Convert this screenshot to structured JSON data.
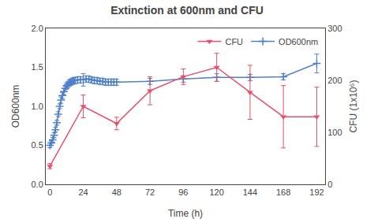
{
  "chart_data": {
    "type": "line",
    "title": "Extinction at 600nm and CFU",
    "xlabel": "Time (h)",
    "ylabel": "OD600nm",
    "y2label": "CFU (1x10⁶)",
    "xlim": [
      -3,
      198
    ],
    "xticks": [
      0,
      24,
      48,
      72,
      96,
      120,
      144,
      168,
      192
    ],
    "ylim": [
      0.0,
      2.0
    ],
    "yticks": [
      {
        "value": 0,
        "label": "0.0"
      },
      0.5,
      {
        "value": 1,
        "label": "1.0"
      },
      1.5,
      {
        "value": 2,
        "label": "2.0"
      }
    ],
    "y2lim": [
      0,
      300
    ],
    "y2ticks": [
      0,
      100,
      200,
      300
    ],
    "grid": false,
    "legend": "upper right",
    "background_color": "#FFFFFF",
    "series": [
      {
        "name": "CFU",
        "axis": "y2",
        "color": "#E8506A",
        "marker": "triangle-down",
        "x": [
          0,
          24,
          48,
          72,
          96,
          120,
          144,
          168,
          192
        ],
        "values": [
          35,
          150,
          117,
          180,
          207,
          225,
          177,
          130,
          130
        ],
        "errors": [
          5,
          22,
          12,
          27,
          15,
          27,
          52,
          60,
          57
        ]
      },
      {
        "name": "OD600nm",
        "axis": "y",
        "color": "#5080C8",
        "marker": "cross-thin",
        "x": [
          0,
          1,
          2,
          3,
          4,
          5,
          6,
          7,
          8,
          9,
          10,
          11,
          12,
          13,
          14,
          15,
          16,
          17,
          18,
          20,
          22,
          24,
          26,
          28,
          30,
          32,
          34,
          36,
          38,
          40,
          42,
          44,
          46,
          48,
          72,
          96,
          120,
          144,
          168,
          192
        ],
        "values": [
          0.5,
          0.53,
          0.57,
          0.63,
          0.7,
          0.79,
          0.9,
          1.0,
          1.08,
          1.14,
          1.19,
          1.23,
          1.26,
          1.28,
          1.3,
          1.31,
          1.32,
          1.33,
          1.33,
          1.34,
          1.34,
          1.34,
          1.35,
          1.35,
          1.34,
          1.33,
          1.33,
          1.32,
          1.32,
          1.31,
          1.31,
          1.31,
          1.31,
          1.31,
          1.32,
          1.35,
          1.37,
          1.37,
          1.38,
          1.55
        ],
        "errors": [
          0.03,
          0.03,
          0.03,
          0.03,
          0.03,
          0.03,
          0.03,
          0.03,
          0.04,
          0.04,
          0.04,
          0.04,
          0.04,
          0.04,
          0.04,
          0.04,
          0.04,
          0.04,
          0.04,
          0.04,
          0.04,
          0.08,
          0.04,
          0.04,
          0.04,
          0.04,
          0.04,
          0.04,
          0.04,
          0.04,
          0.04,
          0.04,
          0.04,
          0.04,
          0.04,
          0.04,
          0.05,
          0.04,
          0.04,
          0.12
        ]
      }
    ]
  }
}
